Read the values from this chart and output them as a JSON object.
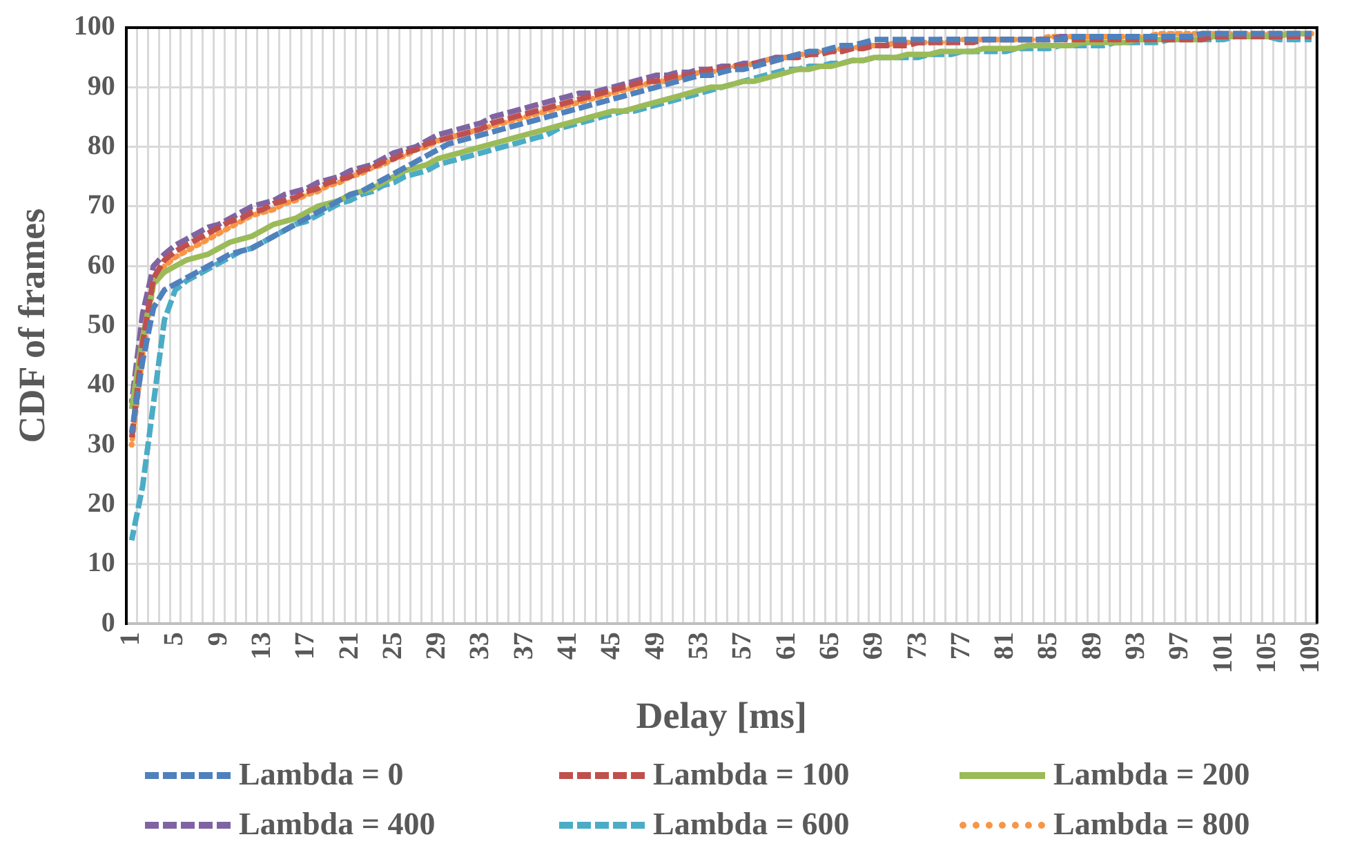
{
  "chart_data": {
    "type": "line",
    "xlabel": "Delay [ms]",
    "ylabel": "CDF of frames",
    "categories": [
      "1",
      null,
      null,
      null,
      "5",
      null,
      null,
      null,
      "9",
      null,
      null,
      null,
      "13",
      null,
      null,
      null,
      "17",
      null,
      null,
      null,
      "21",
      null,
      null,
      null,
      "25",
      null,
      null,
      null,
      "29",
      null,
      null,
      null,
      "33",
      null,
      null,
      null,
      "37",
      null,
      null,
      null,
      "41",
      null,
      null,
      null,
      "45",
      null,
      null,
      null,
      "49",
      null,
      null,
      null,
      "53",
      null,
      null,
      null,
      "57",
      null,
      null,
      null,
      "61",
      null,
      null,
      null,
      "65",
      null,
      null,
      null,
      "69",
      null,
      null,
      null,
      "73",
      null,
      null,
      null,
      "77",
      null,
      null,
      null,
      "81",
      null,
      null,
      null,
      "85",
      null,
      null,
      null,
      "89",
      null,
      null,
      null,
      "93",
      null,
      null,
      null,
      "97",
      null,
      null,
      null,
      "101",
      null,
      null,
      null,
      "105",
      null,
      null,
      null,
      "109"
    ],
    "ylim": [
      0,
      100
    ],
    "yticks": [
      0,
      10,
      20,
      30,
      40,
      50,
      60,
      70,
      80,
      90,
      100
    ],
    "grid": true,
    "legend": "bottom",
    "marker": "none",
    "series": [
      {
        "name": "Lambda = 0",
        "color": "#4f81bd",
        "line_style": "dashed",
        "values": [
          32,
          44,
          53,
          56,
          57,
          58,
          59,
          60,
          61,
          62,
          62.5,
          63,
          64,
          65,
          66,
          67,
          68,
          69,
          70,
          71,
          72,
          72.5,
          73.5,
          74.5,
          75.5,
          76.5,
          77.5,
          78.5,
          79.5,
          80.5,
          81,
          81.5,
          82,
          82.5,
          83,
          83.5,
          84,
          84.5,
          85,
          85.5,
          86,
          86.5,
          87,
          87.5,
          88,
          88.5,
          89,
          89.5,
          90,
          90.5,
          91,
          91.5,
          92,
          92,
          92.5,
          93,
          93,
          93.5,
          94,
          94.5,
          95,
          95.5,
          96,
          96,
          96.5,
          97,
          97,
          97.5,
          98,
          98,
          98,
          98,
          98,
          98,
          98,
          98,
          98,
          98,
          98,
          98,
          98,
          98,
          98,
          98,
          98,
          98,
          98.5,
          98.5,
          98.5,
          98.5,
          98.5,
          98.5,
          98.5,
          98.5,
          98.5,
          98.5,
          98.5,
          98.5,
          99,
          99,
          99,
          99,
          99,
          99,
          99,
          99,
          99,
          99,
          99
        ]
      },
      {
        "name": "Lambda = 100",
        "color": "#c0504d",
        "line_style": "dashed",
        "values": [
          31,
          47,
          58,
          61,
          62.5,
          63.5,
          64.5,
          65.5,
          66.5,
          67.5,
          68,
          69,
          69.5,
          70.5,
          71,
          71.5,
          72.5,
          73,
          74,
          74.5,
          75,
          76,
          76.5,
          77.5,
          78,
          79,
          79.5,
          80.5,
          81,
          81.5,
          82,
          82.5,
          83,
          84,
          84.5,
          85,
          85.5,
          86,
          86.5,
          87,
          87.5,
          88,
          88.5,
          89,
          89.5,
          90,
          90.5,
          91,
          91,
          91.5,
          92,
          92,
          92.5,
          93,
          93,
          93.5,
          93.5,
          94,
          94,
          94.5,
          95,
          95,
          95.5,
          95.5,
          96,
          96,
          96.5,
          96.5,
          97,
          97,
          97,
          97,
          97.5,
          97.5,
          97.5,
          97.5,
          97.5,
          97.5,
          98,
          98,
          98,
          98,
          98,
          98,
          98,
          98,
          98,
          98,
          98,
          98,
          98,
          98,
          98,
          98,
          98,
          98,
          98,
          98,
          98,
          98.5,
          98.5,
          98.5,
          98.5,
          98.5,
          98.5,
          98.5,
          98.5,
          98.5,
          98.5
        ]
      },
      {
        "name": "Lambda = 200",
        "color": "#9bbb59",
        "line_style": "solid",
        "values": [
          36,
          48,
          57,
          59,
          60,
          61,
          61.5,
          62,
          63,
          64,
          64.5,
          65,
          66,
          67,
          67.5,
          68,
          69,
          70,
          70.5,
          71,
          72,
          72.5,
          73,
          74,
          75,
          76,
          76.5,
          77,
          78,
          78.5,
          79,
          79.5,
          80,
          80.5,
          81,
          81.5,
          82,
          82.5,
          83,
          83.5,
          84,
          84.5,
          85,
          85.5,
          86,
          86,
          86.5,
          87,
          87.5,
          88,
          88.5,
          89,
          89.5,
          90,
          90,
          90.5,
          91,
          91,
          91.5,
          92,
          92.5,
          93,
          93,
          93.5,
          93.5,
          94,
          94.5,
          94.5,
          95,
          95,
          95,
          95.5,
          95.5,
          95.5,
          96,
          96,
          96,
          96,
          96.5,
          96.5,
          96.5,
          96.5,
          97,
          97,
          97,
          97,
          97,
          97.5,
          97.5,
          97.5,
          97.5,
          97.5,
          98,
          98,
          98,
          98,
          98,
          98,
          98,
          98.5,
          98.5,
          98.5,
          98.5,
          98.5,
          98.5,
          98.5,
          99,
          99,
          99
        ]
      },
      {
        "name": "Lambda = 400",
        "color": "#8064a2",
        "line_style": "dashed",
        "values": [
          37,
          52,
          60,
          62,
          63.5,
          64.5,
          65.5,
          66.5,
          67,
          68,
          69,
          70,
          70.5,
          71,
          72,
          72.5,
          73,
          74,
          74.5,
          75,
          76,
          76.5,
          77,
          78,
          79,
          79.5,
          80,
          81,
          82,
          82.5,
          83,
          83.5,
          84,
          85,
          85.5,
          86,
          86.5,
          87,
          87.5,
          88,
          88.5,
          89,
          89,
          89.5,
          90,
          90.5,
          91,
          91.5,
          92,
          92,
          92.5,
          92.5,
          93,
          93,
          93.5,
          93.5,
          94,
          94,
          94.5,
          95,
          95,
          95.5,
          95.5,
          96,
          96,
          96.5,
          96.5,
          97,
          97,
          97,
          97.5,
          97.5,
          97.5,
          97.5,
          98,
          98,
          98,
          98,
          98,
          98,
          98,
          98,
          98,
          98,
          98,
          98.5,
          98.5,
          98.5,
          98.5,
          98.5,
          98.5,
          98.5,
          98.5,
          98.5,
          98.5,
          98.5,
          98.5,
          98.5,
          99,
          99,
          99,
          99,
          99,
          99,
          99,
          99,
          99,
          99,
          99
        ]
      },
      {
        "name": "Lambda = 600",
        "color": "#4bacc6",
        "line_style": "dashed",
        "values": [
          14,
          23,
          37,
          51,
          56,
          57.5,
          58.5,
          59.5,
          60.5,
          61.5,
          62.5,
          63,
          64,
          65,
          66,
          67,
          67.5,
          68.5,
          69.5,
          70.5,
          71,
          72,
          72.5,
          73.5,
          74,
          75,
          75.5,
          76,
          77,
          77.5,
          78,
          78.5,
          79,
          79.5,
          80,
          80.5,
          81,
          81.5,
          82,
          83,
          83.5,
          84,
          84.5,
          85,
          85.5,
          86,
          86,
          86.5,
          87,
          87.5,
          88,
          88.5,
          89,
          89.5,
          90,
          90.5,
          91,
          91.5,
          92,
          92.5,
          93,
          93,
          93.5,
          93.5,
          94,
          94,
          94.5,
          94.5,
          95,
          95,
          95,
          95,
          95,
          95.5,
          95.5,
          95.5,
          96,
          96,
          96,
          96,
          96,
          96.5,
          96.5,
          96.5,
          96.5,
          97,
          97,
          97,
          97,
          97,
          97.5,
          97.5,
          97.5,
          97.5,
          97.5,
          98,
          98,
          98,
          98,
          98,
          98,
          98.5,
          98.5,
          98.5,
          98.5,
          98,
          98,
          98,
          98
        ]
      },
      {
        "name": "Lambda = 800",
        "color": "#f79646",
        "line_style": "dotted",
        "values": [
          30,
          45,
          57,
          60,
          61.5,
          62.5,
          63.5,
          64.5,
          65.5,
          66.5,
          67.5,
          68.5,
          69,
          69.5,
          70.5,
          71,
          72,
          72.5,
          73.5,
          74,
          75,
          75.5,
          76.5,
          77,
          78,
          78.5,
          79.5,
          80,
          81,
          81.5,
          82,
          82.5,
          83,
          83.5,
          84,
          84.5,
          85,
          85.5,
          86,
          86.5,
          87,
          87.5,
          88,
          88.5,
          89,
          89.5,
          90,
          90.5,
          91,
          91,
          91.5,
          92,
          92.5,
          92.5,
          93,
          93.5,
          93.5,
          94,
          94.5,
          95,
          95,
          95.5,
          95.5,
          96,
          96,
          96.5,
          96.5,
          97,
          97,
          97,
          97.5,
          97.5,
          97.5,
          97.5,
          97.5,
          97.5,
          98,
          98,
          98,
          98,
          98,
          98,
          98,
          98,
          98.5,
          98.5,
          98.5,
          98.5,
          98.5,
          98.5,
          98.5,
          98.5,
          98.5,
          98.5,
          99,
          99,
          99,
          99,
          99,
          99,
          99,
          99,
          99,
          99,
          99,
          99,
          99,
          99,
          99
        ]
      }
    ]
  }
}
